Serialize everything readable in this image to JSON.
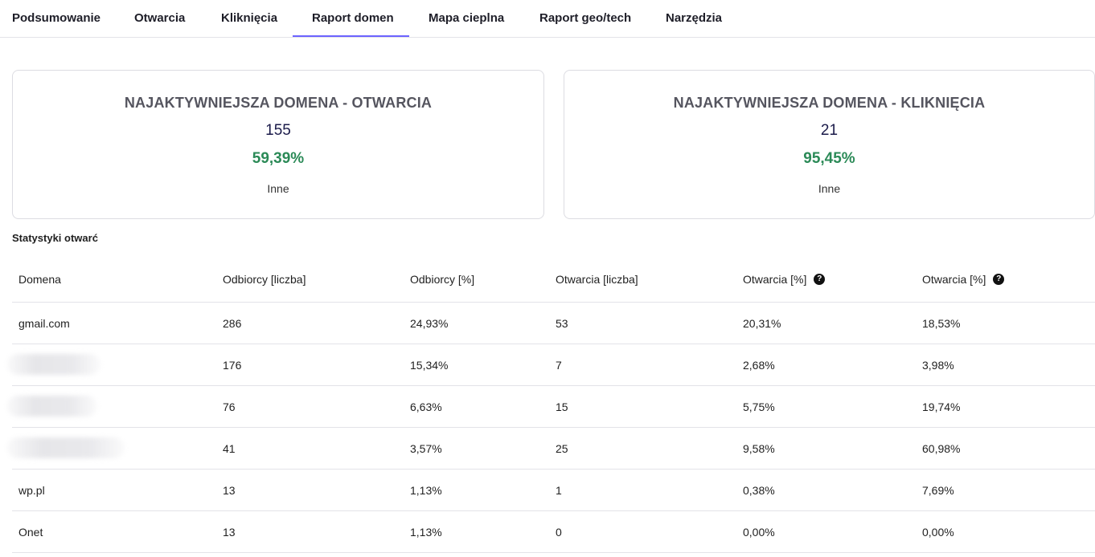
{
  "tabs": [
    {
      "label": "Podsumowanie"
    },
    {
      "label": "Otwarcia"
    },
    {
      "label": "Kliknięcia"
    },
    {
      "label": "Raport domen"
    },
    {
      "label": "Mapa cieplna"
    },
    {
      "label": "Raport geo/tech"
    },
    {
      "label": "Narzędzia"
    }
  ],
  "active_tab": "Raport domen",
  "cards": {
    "opens": {
      "title": "NAJAKTYWNIEJSZA DOMENA - OTWARCIA",
      "count": "155",
      "percent": "59,39%",
      "label": "Inne"
    },
    "clicks": {
      "title": "NAJAKTYWNIEJSZA DOMENA - KLIKNIĘCIA",
      "count": "21",
      "percent": "95,45%",
      "label": "Inne"
    }
  },
  "section_title": "Statystyki otwarć",
  "table": {
    "headers": [
      "Domena",
      "Odbiorcy [liczba]",
      "Odbiorcy [%]",
      "Otwarcia [liczba]",
      "Otwarcia [%]",
      "Otwarcia [%]"
    ],
    "rows": [
      [
        "gmail.com",
        "286",
        "24,93%",
        "53",
        "20,31%",
        "18,53%"
      ],
      [
        "",
        "176",
        "15,34%",
        "7",
        "2,68%",
        "3,98%"
      ],
      [
        "",
        "76",
        "6,63%",
        "15",
        "5,75%",
        "19,74%"
      ],
      [
        "",
        "41",
        "3,57%",
        "25",
        "9,58%",
        "60,98%"
      ],
      [
        "wp.pl",
        "13",
        "1,13%",
        "1",
        "0,38%",
        "7,69%"
      ],
      [
        "Onet",
        "13",
        "1,13%",
        "0",
        "0,00%",
        "0,00%"
      ]
    ]
  },
  "colors": {
    "accent": "#6c63ff",
    "positive": "#2b8a57",
    "count": "#1b1b4a"
  },
  "icons": {
    "help": "question-circle-icon"
  }
}
